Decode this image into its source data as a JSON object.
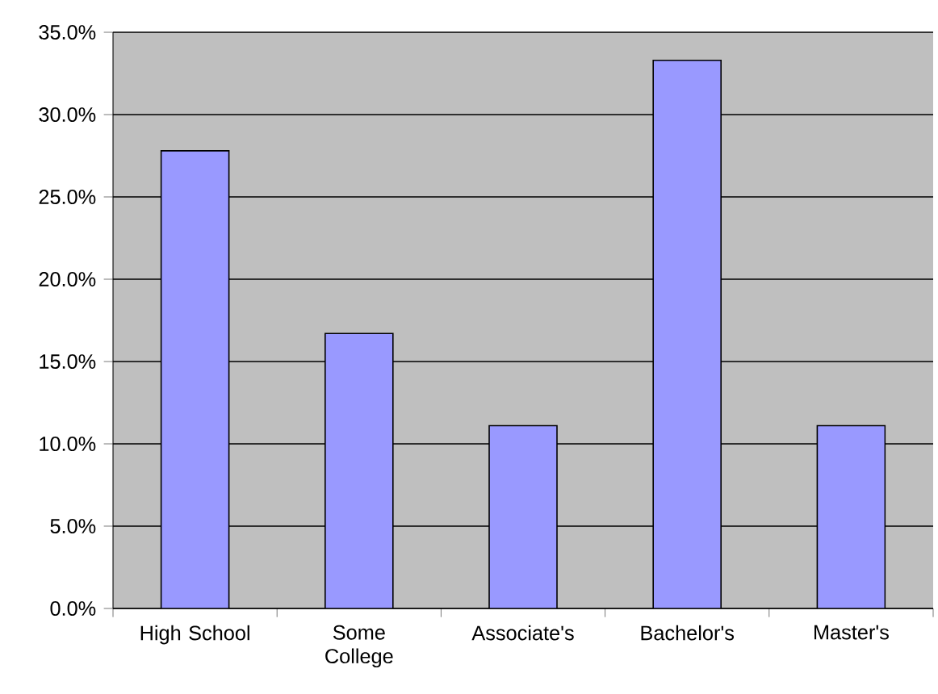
{
  "chart_data": {
    "type": "bar",
    "categories": [
      "High School",
      "Some College",
      "Associate's",
      "Bachelor's",
      "Master's"
    ],
    "values": [
      27.8,
      16.7,
      11.1,
      33.3,
      11.1
    ],
    "color": "#9999ff",
    "ylim": [
      0,
      35
    ],
    "yticks": [
      {
        "value": 0,
        "label": "0.0%"
      },
      {
        "value": 5,
        "label": "5.0%"
      },
      {
        "value": 10,
        "label": "10.0%"
      },
      {
        "value": 15,
        "label": "15.0%"
      },
      {
        "value": 20,
        "label": "20.0%"
      },
      {
        "value": 25,
        "label": "25.0%"
      },
      {
        "value": 30,
        "label": "30.0%"
      },
      {
        "value": 35,
        "label": "35.0%"
      }
    ],
    "grid": "y"
  }
}
